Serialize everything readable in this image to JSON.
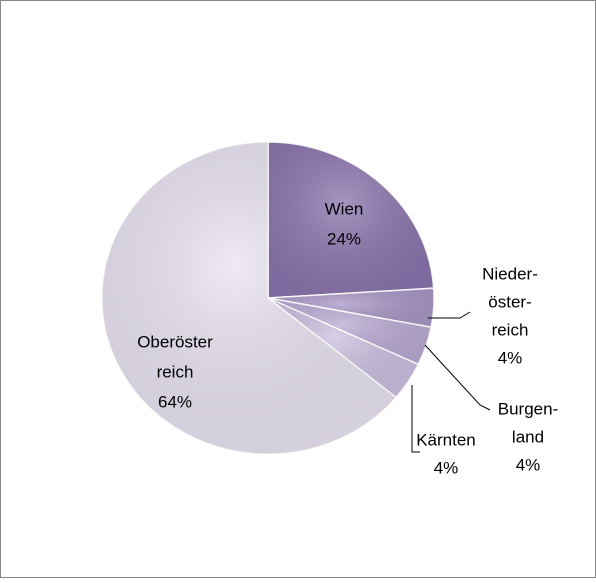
{
  "chart_data": {
    "type": "pie",
    "categories": [
      [
        "Wien"
      ],
      [
        "Nieder-",
        "öster-",
        "reich"
      ],
      [
        "Burgen-",
        "land"
      ],
      [
        "Kärnten"
      ],
      [
        "Oberöster",
        "reich"
      ]
    ],
    "values": [
      24,
      4,
      4,
      4,
      64
    ],
    "value_labels": [
      "24%",
      "4%",
      "4%",
      "4%",
      "64%"
    ],
    "colors": [
      "#8a73ad",
      "#a896c6",
      "#b9aad4",
      "#cbbfe0",
      "#e9e3f2"
    ]
  }
}
